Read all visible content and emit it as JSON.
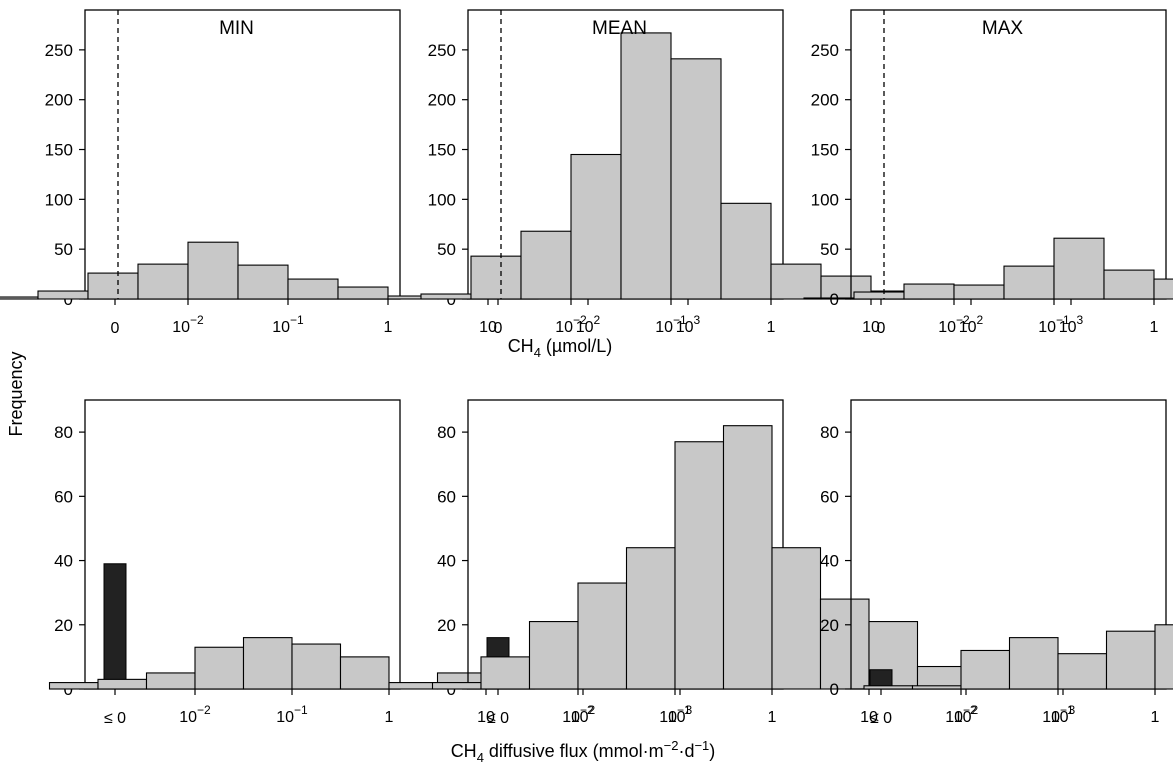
{
  "figure": {
    "ylabel": "Frequency",
    "top_xlabel": {
      "main": "CH",
      "sub": "4",
      "rest": " (µmol/L)"
    },
    "bottom_xlabel": {
      "main": "CH",
      "sub": "4",
      "rest1": " diffusive flux (mmol·m",
      "sup1": "−2",
      "rest2": "·d",
      "sup2": "−1",
      "rest3": ")"
    }
  },
  "colors": {
    "bar_fill": "#c8c8c8",
    "zero_fill": "#222222",
    "stroke": "#000000"
  },
  "chart_data": [
    {
      "type": "bar",
      "title": "MIN",
      "row": "concentration",
      "xlabel": "CH4 (µmol/L)",
      "ylabel": "Frequency",
      "ylim": [
        0,
        290
      ],
      "yticks": [
        0,
        50,
        100,
        150,
        200,
        250
      ],
      "zero_label": "0",
      "zero_value": 10,
      "bins_log10": [
        -4,
        -3.5,
        -3,
        -2.5,
        -2,
        -1.5,
        -1,
        -0.5,
        0,
        0.5,
        1,
        1.5,
        2,
        2.5,
        3
      ],
      "values": [
        2,
        8,
        26,
        35,
        57,
        34,
        20,
        12,
        3,
        1,
        1,
        0,
        0,
        0
      ],
      "detection_limit_log10": -2.7,
      "xticks": [
        {
          "label": "10",
          "exp": "−2",
          "log10": -2
        },
        {
          "label": "10",
          "exp": "−1",
          "log10": -1
        },
        {
          "label": "1",
          "exp": "",
          "log10": 0
        },
        {
          "label": "10",
          "exp": "",
          "log10": 1
        },
        {
          "label": "10",
          "exp": "2",
          "log10": 2
        },
        {
          "label": "10",
          "exp": "3",
          "log10": 3
        }
      ]
    },
    {
      "type": "bar",
      "title": "MEAN",
      "row": "concentration",
      "xlabel": "CH4 (µmol/L)",
      "ylabel": "Frequency",
      "ylim": [
        0,
        290
      ],
      "yticks": [
        0,
        50,
        100,
        150,
        200,
        250
      ],
      "zero_label": "0",
      "zero_value": 11,
      "bins_log10": [
        -4,
        -3.5,
        -3,
        -2.5,
        -2,
        -1.5,
        -1,
        -0.5,
        0,
        0.5,
        1,
        1.5,
        2,
        2.5,
        3
      ],
      "values": [
        0,
        5,
        43,
        68,
        145,
        267,
        241,
        96,
        35,
        23,
        8,
        1,
        0,
        0
      ],
      "detection_limit_log10": -2.7,
      "xticks": [
        {
          "label": "10",
          "exp": "−2",
          "log10": -2
        },
        {
          "label": "10",
          "exp": "−1",
          "log10": -1
        },
        {
          "label": "1",
          "exp": "",
          "log10": 0
        },
        {
          "label": "10",
          "exp": "",
          "log10": 1
        },
        {
          "label": "10",
          "exp": "2",
          "log10": 2
        },
        {
          "label": "10",
          "exp": "3",
          "log10": 3
        }
      ]
    },
    {
      "type": "bar",
      "title": "MAX",
      "row": "concentration",
      "xlabel": "CH4 (µmol/L)",
      "ylabel": "Frequency",
      "ylim": [
        0,
        290
      ],
      "yticks": [
        0,
        50,
        100,
        150,
        200,
        250
      ],
      "zero_label": "0",
      "zero_value": 6,
      "bins_log10": [
        -4,
        -3.5,
        -3,
        -2.5,
        -2,
        -1.5,
        -1,
        -0.5,
        0,
        0.5,
        1,
        1.5,
        2,
        2.5,
        3
      ],
      "values": [
        0,
        1,
        7,
        15,
        14,
        33,
        61,
        29,
        20,
        8,
        5,
        1,
        1,
        0
      ],
      "detection_limit_log10": -2.7,
      "xticks": [
        {
          "label": "10",
          "exp": "−2",
          "log10": -2
        },
        {
          "label": "10",
          "exp": "−1",
          "log10": -1
        },
        {
          "label": "1",
          "exp": "",
          "log10": 0
        },
        {
          "label": "10",
          "exp": "",
          "log10": 1
        },
        {
          "label": "10",
          "exp": "2",
          "log10": 2
        },
        {
          "label": "10",
          "exp": "3",
          "log10": 3
        }
      ]
    },
    {
      "type": "bar",
      "title": "",
      "row": "flux",
      "xlabel": "CH4 diffusive flux (mmol·m−2·d−1)",
      "ylabel": "Frequency",
      "ylim": [
        0,
        90
      ],
      "yticks": [
        0,
        20,
        40,
        60,
        80
      ],
      "zero_label": "≤ 0",
      "zero_value": 39,
      "bins_log10": [
        -3.5,
        -3,
        -2.5,
        -2,
        -1.5,
        -1,
        -0.5,
        0,
        0.5,
        1,
        1.5,
        2,
        2.5,
        3
      ],
      "values": [
        2,
        3,
        5,
        13,
        16,
        14,
        10,
        2,
        5,
        1,
        0,
        0,
        0
      ],
      "xticks": [
        {
          "label": "10",
          "exp": "−2",
          "log10": -2
        },
        {
          "label": "10",
          "exp": "−1",
          "log10": -1
        },
        {
          "label": "1",
          "exp": "",
          "log10": 0
        },
        {
          "label": "10",
          "exp": "",
          "log10": 1
        },
        {
          "label": "10",
          "exp": "2",
          "log10": 2
        },
        {
          "label": "10",
          "exp": "3",
          "log10": 3
        }
      ]
    },
    {
      "type": "bar",
      "title": "",
      "row": "flux",
      "xlabel": "CH4 diffusive flux (mmol·m−2·d−1)",
      "ylabel": "Frequency",
      "ylim": [
        0,
        90
      ],
      "yticks": [
        0,
        20,
        40,
        60,
        80
      ],
      "zero_label": "≤ 0",
      "zero_value": 16,
      "bins_log10": [
        -3.5,
        -3,
        -2.5,
        -2,
        -1.5,
        -1,
        -0.5,
        0,
        0.5,
        1,
        1.5,
        2,
        2.5,
        3
      ],
      "values": [
        2,
        10,
        21,
        33,
        44,
        77,
        82,
        44,
        28,
        21,
        7,
        0,
        0
      ],
      "xticks": [
        {
          "label": "10",
          "exp": "−2",
          "log10": -2
        },
        {
          "label": "10",
          "exp": "−1",
          "log10": -1
        },
        {
          "label": "1",
          "exp": "",
          "log10": 0
        },
        {
          "label": "10",
          "exp": "",
          "log10": 1
        },
        {
          "label": "10",
          "exp": "2",
          "log10": 2
        },
        {
          "label": "10",
          "exp": "3",
          "log10": 3
        }
      ]
    },
    {
      "type": "bar",
      "title": "",
      "row": "flux",
      "xlabel": "CH4 diffusive flux (mmol·m−2·d−1)",
      "ylabel": "Frequency",
      "ylim": [
        0,
        90
      ],
      "yticks": [
        0,
        20,
        40,
        60,
        80
      ],
      "zero_label": "≤ 0",
      "zero_value": 6,
      "bins_log10": [
        -3.5,
        -3,
        -2.5,
        -2,
        -1.5,
        -1,
        -0.5,
        0,
        0.5,
        1,
        1.5,
        2,
        2.5,
        3
      ],
      "values": [
        0,
        1,
        1,
        12,
        16,
        11,
        18,
        20,
        13,
        7,
        1,
        4,
        0
      ],
      "xticks": [
        {
          "label": "10",
          "exp": "−2",
          "log10": -2
        },
        {
          "label": "10",
          "exp": "−1",
          "log10": -1
        },
        {
          "label": "1",
          "exp": "",
          "log10": 0
        },
        {
          "label": "10",
          "exp": "",
          "log10": 1
        },
        {
          "label": "10",
          "exp": "2",
          "log10": 2
        },
        {
          "label": "10",
          "exp": "3",
          "log10": 3
        }
      ]
    }
  ]
}
